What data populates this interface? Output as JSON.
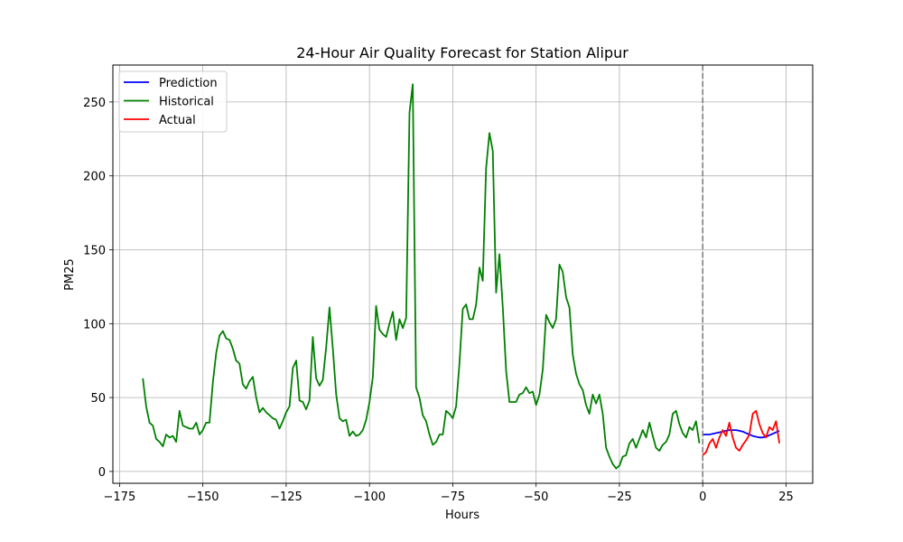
{
  "chart_data": {
    "type": "line",
    "title": "24-Hour Air Quality Forecast for Station Alipur",
    "xlabel": "Hours",
    "ylabel": "PM25",
    "xlim": [
      -177,
      33
    ],
    "ylim": [
      -8,
      275
    ],
    "xticks": [
      -175,
      -150,
      -125,
      -100,
      -75,
      -50,
      -25,
      0,
      25
    ],
    "yticks": [
      0,
      50,
      100,
      150,
      200,
      250
    ],
    "grid": true,
    "legend_position": "upper-left",
    "vline": {
      "x": 0,
      "style": "dashed",
      "color": "#808080"
    },
    "series": [
      {
        "name": "Prediction",
        "color": "#0000ff",
        "x": [
          0,
          1,
          2,
          3,
          4,
          5,
          6,
          7,
          8,
          9,
          10,
          11,
          12,
          13,
          14,
          15,
          16,
          17,
          18,
          19,
          20,
          21,
          22,
          23
        ],
        "y": [
          25,
          25,
          25,
          25.5,
          26,
          26.5,
          27,
          27.5,
          28,
          28,
          28,
          27.5,
          27,
          26,
          25,
          24,
          23.5,
          23,
          23,
          23.5,
          24.5,
          25.5,
          26.5,
          27.5
        ]
      },
      {
        "name": "Historical",
        "color": "#008000",
        "x": [
          -168,
          -167,
          -166,
          -165,
          -164,
          -163,
          -162,
          -161,
          -160,
          -159,
          -158,
          -157,
          -156,
          -155,
          -154,
          -153,
          -152,
          -151,
          -150,
          -149,
          -148,
          -147,
          -146,
          -145,
          -144,
          -143,
          -142,
          -141,
          -140,
          -139,
          -138,
          -137,
          -136,
          -135,
          -134,
          -133,
          -132,
          -131,
          -130,
          -129,
          -128,
          -127,
          -126,
          -125,
          -124,
          -123,
          -122,
          -121,
          -120,
          -119,
          -118,
          -117,
          -116,
          -115,
          -114,
          -113,
          -112,
          -111,
          -110,
          -109,
          -108,
          -107,
          -106,
          -105,
          -104,
          -103,
          -102,
          -101,
          -100,
          -99,
          -98,
          -97,
          -96,
          -95,
          -94,
          -93,
          -92,
          -91,
          -90,
          -89,
          -88,
          -87,
          -86,
          -85,
          -84,
          -83,
          -82,
          -81,
          -80,
          -79,
          -78,
          -77,
          -76,
          -75,
          -74,
          -73,
          -72,
          -71,
          -70,
          -69,
          -68,
          -67,
          -66,
          -65,
          -64,
          -63,
          -62,
          -61,
          -60,
          -59,
          -58,
          -57,
          -56,
          -55,
          -54,
          -53,
          -52,
          -51,
          -50,
          -49,
          -48,
          -47,
          -46,
          -45,
          -44,
          -43,
          -42,
          -41,
          -40,
          -39,
          -38,
          -37,
          -36,
          -35,
          -34,
          -33,
          -32,
          -31,
          -30,
          -29,
          -28,
          -27,
          -26,
          -25,
          -24,
          -23,
          -22,
          -21,
          -20,
          -19,
          -18,
          -17,
          -16,
          -15,
          -14,
          -13,
          -12,
          -11,
          -10,
          -9,
          -8,
          -7,
          -6,
          -5,
          -4,
          -3,
          -2,
          -1
        ],
        "y": [
          63,
          44,
          33,
          31,
          22,
          20,
          17,
          25,
          23,
          24,
          20,
          41,
          31,
          30,
          29,
          29,
          33,
          25,
          28,
          33,
          33,
          60,
          80,
          92,
          95,
          90,
          89,
          83,
          75,
          73,
          59,
          56,
          61,
          64,
          50,
          40,
          43,
          40,
          38,
          36,
          35,
          29,
          34,
          40,
          44,
          70,
          75,
          48,
          47,
          42,
          48,
          91,
          63,
          58,
          62,
          84,
          111,
          83,
          52,
          36,
          34,
          35,
          24,
          27,
          24,
          25,
          28,
          35,
          47,
          64,
          112,
          96,
          93,
          91,
          100,
          108,
          89,
          103,
          97,
          104,
          243,
          262,
          57,
          50,
          38,
          34,
          25,
          18,
          20,
          25,
          25,
          41,
          39,
          36,
          44,
          73,
          110,
          113,
          103,
          103,
          113,
          138,
          129,
          205,
          229,
          217,
          121,
          147,
          111,
          68,
          47,
          47,
          47,
          52,
          53,
          57,
          53,
          54,
          45,
          52,
          69,
          106,
          101,
          97,
          103,
          140,
          135,
          118,
          111,
          79,
          66,
          59,
          55,
          45,
          39,
          52,
          46,
          52,
          39,
          16,
          10,
          5,
          2,
          4,
          10,
          11,
          19,
          22,
          16,
          22,
          28,
          23,
          33,
          24,
          16,
          14,
          18,
          20,
          25,
          39,
          41,
          32,
          26,
          23,
          30,
          28,
          34,
          19
        ]
      },
      {
        "name": "Actual",
        "color": "#ff0000",
        "x": [
          0,
          1,
          2,
          3,
          4,
          5,
          6,
          7,
          8,
          9,
          10,
          11,
          12,
          13,
          14,
          15,
          16,
          17,
          18,
          19,
          20,
          21,
          22,
          23
        ],
        "y": [
          11,
          13,
          19,
          22,
          16,
          23,
          28,
          24,
          33,
          23,
          16,
          14,
          18,
          21,
          25,
          39,
          41,
          32,
          26,
          23,
          30,
          28,
          34,
          19
        ]
      }
    ]
  }
}
